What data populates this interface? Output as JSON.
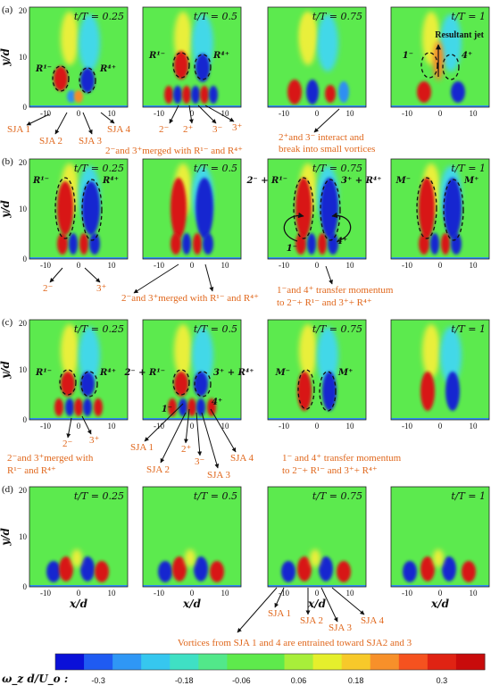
{
  "rows": [
    {
      "label": "(a)",
      "times": [
        "t/T = 0.25",
        "t/T = 0.5",
        "t/T = 0.75",
        "t/T = 1"
      ],
      "vortex_labels": [
        [
          "R¹⁻",
          "R⁴⁺"
        ],
        [
          "R¹⁻",
          "R⁴⁺"
        ],
        [],
        [
          "1⁻",
          "4⁺"
        ]
      ],
      "bold_text": "Resultant jet",
      "annotations": [
        "SJA 1",
        "SJA 2",
        "SJA 3",
        "SJA 4",
        "2⁻",
        "2⁺",
        "3⁻",
        "3⁺",
        "2⁻and 3⁺merged with R¹⁻ and R⁴⁺",
        "2⁺and 3⁻ interact and",
        "break into small vortices"
      ]
    },
    {
      "label": "(b)",
      "times": [
        "t/T = 0.25",
        "t/T = 0.5",
        "t/T = 0.75",
        "t/T = 1"
      ],
      "vortex_labels": [
        [
          "R¹⁻",
          "R⁴⁺"
        ],
        [],
        [
          "2⁻ + R¹⁻",
          "3⁺ + R⁴⁺",
          "1⁻",
          "4⁺"
        ],
        [
          "M⁻",
          "M⁺"
        ]
      ],
      "annotations": [
        "2⁻",
        "3⁺",
        "2⁻and 3⁺merged with R¹⁻ and R⁴⁺",
        "1⁻and 4⁺ transfer momentum",
        "to  2⁻+ R¹⁻ and 3⁺+ R⁴⁺"
      ]
    },
    {
      "label": "(c)",
      "times": [
        "t/T = 0.25",
        "t/T = 0.5",
        "t/T = 0.75",
        "t/T = 1"
      ],
      "vortex_labels": [
        [
          "R¹⁻",
          "R⁴⁺"
        ],
        [
          "2⁻ + R¹⁻",
          "3⁺ + R⁴⁺",
          "1⁻",
          "4⁺"
        ],
        [
          "M⁻",
          "M⁺"
        ],
        []
      ],
      "annotations": [
        "2⁻",
        "3⁺",
        "2⁻and 3⁺merged with",
        "R¹⁻ and R⁴⁺",
        "SJA 1",
        "2⁺",
        "SJA 2",
        "3⁻",
        "SJA 3",
        "SJA 4",
        "1⁻ and 4⁺ transfer momentum",
        "to  2⁻+ R¹⁻ and 3⁺+ R⁴⁺"
      ]
    },
    {
      "label": "(d)",
      "times": [
        "t/T = 0.25",
        "t/T = 0.5",
        "t/T = 0.75",
        "t/T = 1"
      ],
      "vortex_labels": [
        [],
        [],
        [],
        []
      ],
      "annotations": [
        "SJA 1",
        "SJA 2",
        "SJA 3",
        "SJA 4",
        "Vortices from SJA 1 and 4 are entrained toward SJA2 and 3"
      ]
    }
  ],
  "axes": {
    "ylabel": "y/d",
    "xlabel": "x/d",
    "yticks": [
      "0",
      "10",
      "20"
    ],
    "xticks": [
      "-10",
      "0",
      "10"
    ]
  },
  "colorbar": {
    "label": "ω_z d/U_o :",
    "ticks": [
      "-0.3",
      "-0.18",
      "-0.06",
      "0.06",
      "0.18",
      "0.3"
    ],
    "colors": [
      "#0a10d8",
      "#1f5bf2",
      "#2f97f5",
      "#36c7ef",
      "#3fe0c4",
      "#52e88a",
      "#5eea4c",
      "#5eea4c",
      "#a8ee3a",
      "#e5ef2c",
      "#f7c92a",
      "#f7902a",
      "#f5521f",
      "#e02313",
      "#c90b0b"
    ]
  },
  "field_colors": {
    "background": "#5cea4e",
    "positive_strong": "#d81616",
    "positive_mid": "#f58a2a",
    "positive_weak": "#e9ef3a",
    "negative_strong": "#1428d0",
    "negative_mid": "#2f8ff2",
    "negative_weak": "#42d8e8",
    "annotation": "#e0671c"
  }
}
